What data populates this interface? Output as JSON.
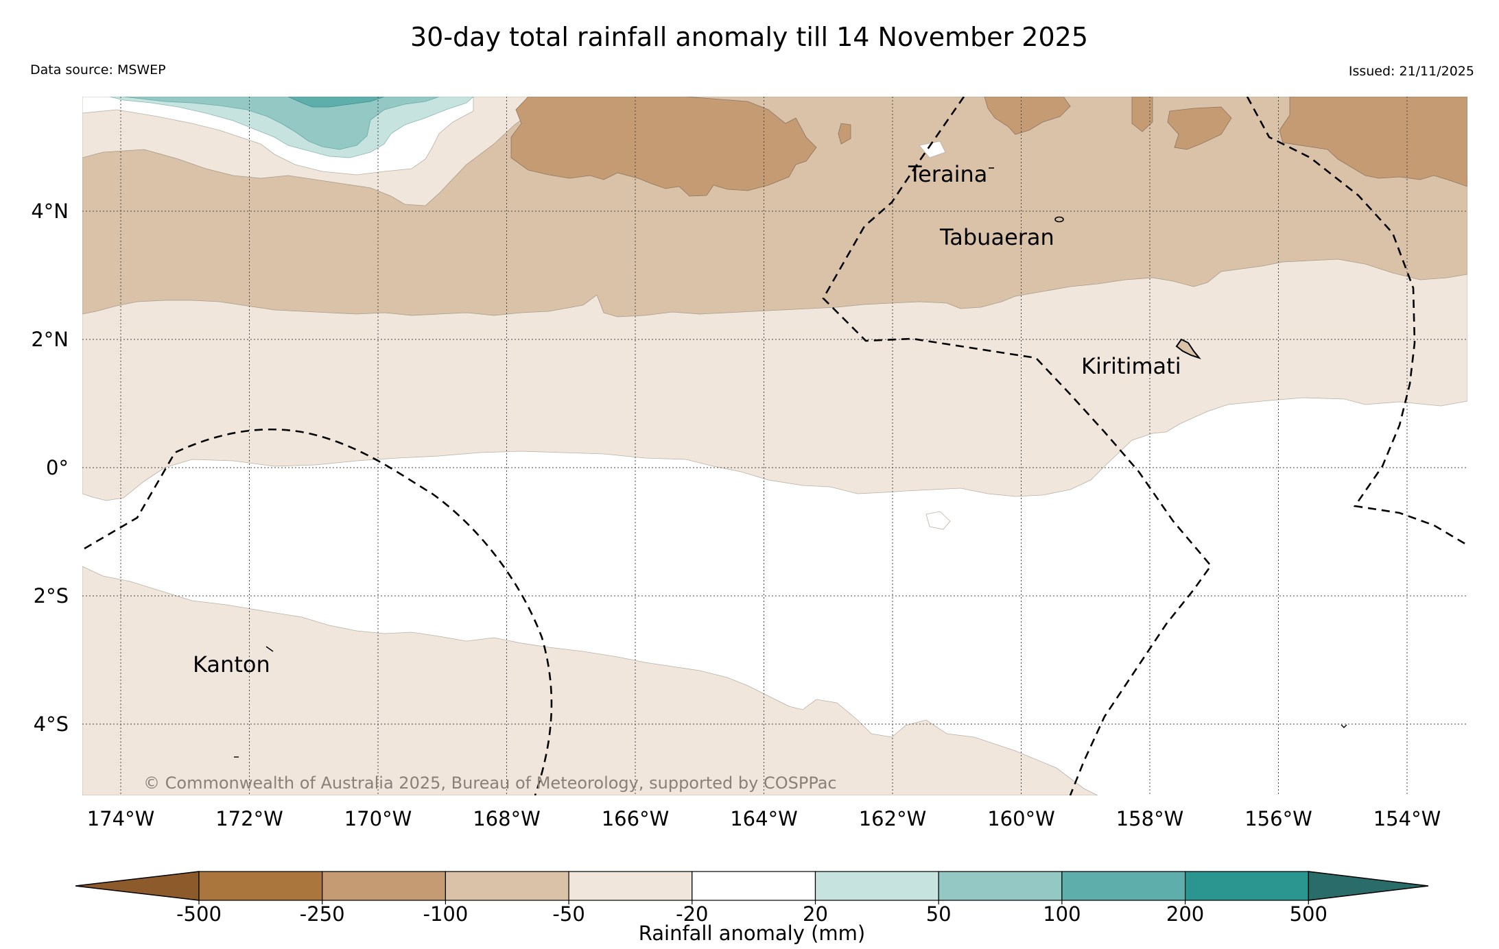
{
  "header": {
    "title": "30-day total rainfall anomaly till 14 November 2025",
    "data_source": "Data source: MSWEP",
    "issued": "Issued: 21/11/2025"
  },
  "map": {
    "copyright": "© Commonwealth of Australia 2025, Bureau of Meteorology, supported by COSPPac",
    "lon_ticks": [
      "174°W",
      "172°W",
      "170°W",
      "168°W",
      "166°W",
      "164°W",
      "162°W",
      "160°W",
      "158°W",
      "156°W",
      "154°W"
    ],
    "lat_ticks": [
      "4°N",
      "2°N",
      "0°",
      "2°S",
      "4°S"
    ],
    "places": {
      "teraina": "Teraina",
      "tabuaeran": "Tabuaeran",
      "kiritimati": "Kiritimati",
      "kanton": "Kanton"
    }
  },
  "colorbar": {
    "label": "Rainfall anomaly (mm)",
    "ticks": [
      "-500",
      "-250",
      "-100",
      "-50",
      "-20",
      "20",
      "50",
      "100",
      "200",
      "500"
    ],
    "colors": {
      "lt_-500": "#8c5a2b",
      "c1": "#ab763e",
      "c2": "#c49b72",
      "c3": "#dac2a9",
      "c4": "#f0e6dc",
      "c5": "#ffffff",
      "c6": "#c6e3e0",
      "c7": "#93c8c5",
      "c8": "#5eafab",
      "c9": "#2b9590",
      "gt_500": "#2a6c6a"
    }
  }
}
